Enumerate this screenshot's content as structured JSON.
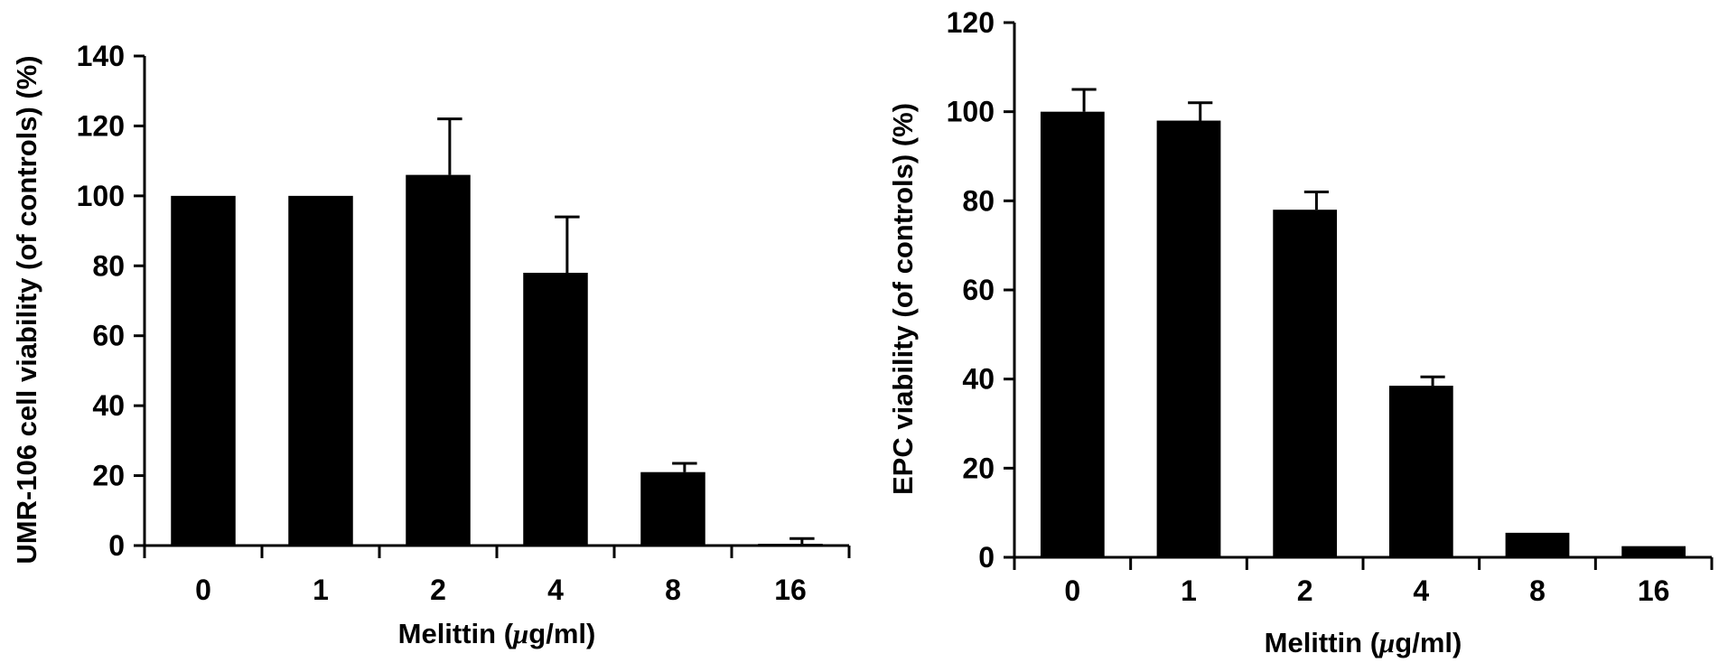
{
  "chart_data": [
    {
      "type": "bar",
      "categories": [
        "0",
        "1",
        "2",
        "4",
        "8",
        "16"
      ],
      "values": [
        100,
        100,
        106,
        78,
        21,
        0.5
      ],
      "errors": [
        0,
        0,
        16,
        16,
        2.5,
        1.5
      ],
      "xlabel": "Melittin (μg/ml)",
      "xlabel_prefix": "Melittin (",
      "xlabel_mu": "μ",
      "xlabel_suffix": "g/ml)",
      "ylabel": "UMR-106 cell viability (of controls) (%)",
      "ylim": [
        0,
        140
      ],
      "yticks": [
        0,
        20,
        40,
        60,
        80,
        100,
        120,
        140
      ],
      "grid": false,
      "bar_color": "#000000"
    },
    {
      "type": "bar",
      "categories": [
        "0",
        "1",
        "2",
        "4",
        "8",
        "16"
      ],
      "values": [
        100,
        98,
        78,
        38.5,
        5.5,
        2.5
      ],
      "errors": [
        5,
        4,
        4,
        2,
        0,
        0
      ],
      "xlabel": "Melittin (μg/ml)",
      "xlabel_prefix": "Melittin (",
      "xlabel_mu": "μ",
      "xlabel_suffix": "g/ml)",
      "ylabel": "EPC viability (of controls) (%)",
      "ylim": [
        0,
        120
      ],
      "yticks": [
        0,
        20,
        40,
        60,
        80,
        100,
        120
      ],
      "grid": false,
      "bar_color": "#000000"
    }
  ]
}
